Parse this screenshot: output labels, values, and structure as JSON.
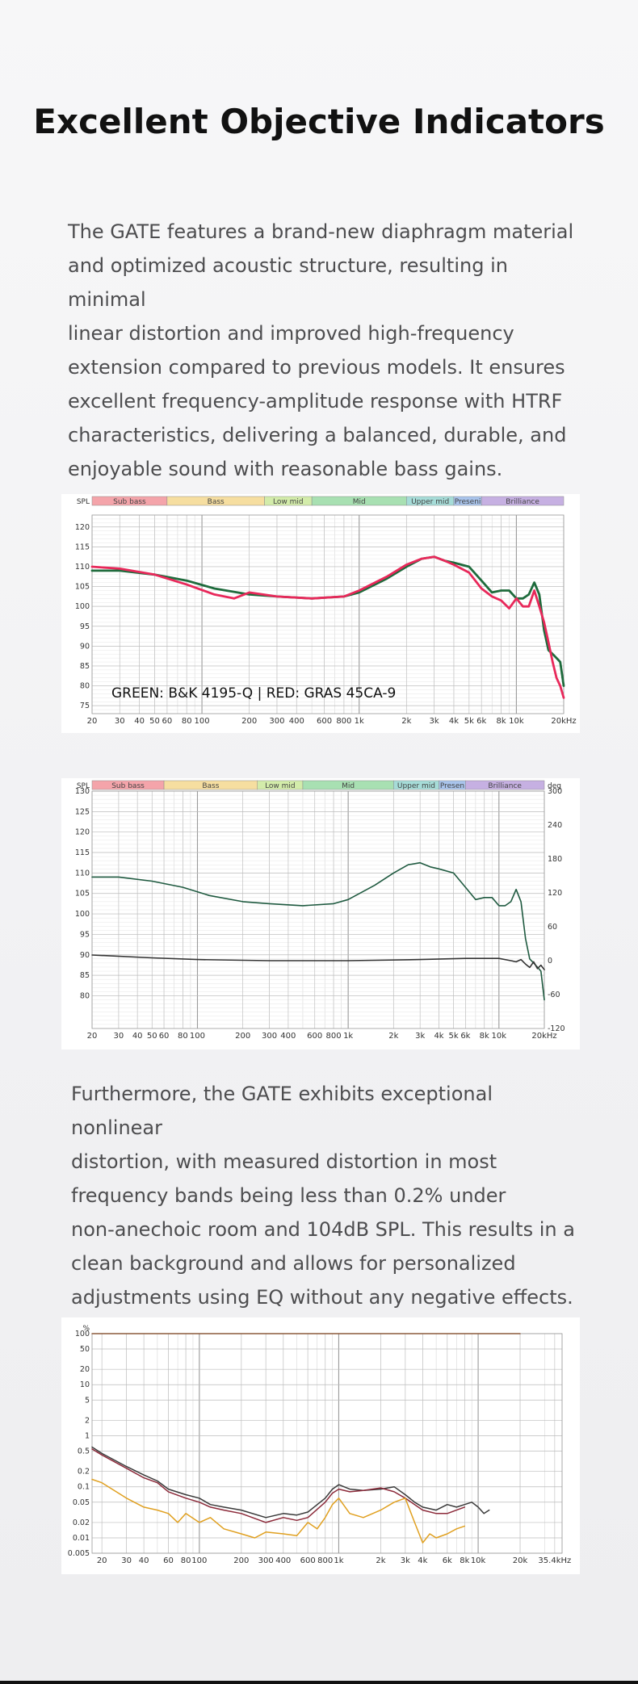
{
  "header": {
    "title": "Excellent Objective Indicators"
  },
  "intro": {
    "lines": [
      "The GATE features a brand-new diaphragm material",
      "and optimized acoustic structure, resulting in minimal",
      "linear distortion and improved high-frequency",
      "extension compared to previous models. It ensures",
      "excellent frequency-amplitude response with HTRF",
      "characteristics, delivering a balanced, durable, and",
      "enjoyable sound with reasonable bass gains."
    ]
  },
  "distortion_text": {
    "lines": [
      "Furthermore, the GATE exhibits exceptional nonlinear",
      "distortion, with measured distortion in most",
      "frequency bands being less than 0.2% under",
      "non-anechoic room and 104dB SPL. This results in a",
      "clean background and allows for personalized",
      "adjustments using EQ without any negative effects."
    ]
  },
  "chart_data": [
    {
      "type": "line",
      "id": "fr",
      "ylabel": "SPL",
      "bands": [
        {
          "name": "Sub bass",
          "from": 20,
          "to": 60,
          "color": "#f4a4aa"
        },
        {
          "name": "Bass",
          "from": 60,
          "to": 250,
          "color": "#f6dea0"
        },
        {
          "name": "Low mid",
          "from": 250,
          "to": 500,
          "color": "#d3ecaa"
        },
        {
          "name": "Mid",
          "from": 500,
          "to": 2000,
          "color": "#a8e0b2"
        },
        {
          "name": "Upper mid",
          "from": 2000,
          "to": 4000,
          "color": "#a6dcd8"
        },
        {
          "name": "Presence",
          "label": "Preseni",
          "from": 4000,
          "to": 6000,
          "color": "#a9c4ec"
        },
        {
          "name": "Brilliance",
          "from": 6000,
          "to": 20000,
          "color": "#c6b0e2"
        }
      ],
      "annotation": "GREEN: B&K 4195-Q | RED: GRAS 45CA-9",
      "xscale": "log",
      "xlim": [
        20,
        20000
      ],
      "ylim": [
        73,
        123
      ],
      "xticks": [
        20,
        30,
        40,
        50,
        60,
        80,
        100,
        200,
        300,
        400,
        600,
        800,
        1000,
        2000,
        3000,
        4000,
        5000,
        6000,
        8000,
        10000,
        20000
      ],
      "xtick_labels": [
        "20",
        "30",
        "40",
        "50",
        "60",
        "80",
        "100",
        "200",
        "300",
        "400",
        "600",
        "800",
        "1k",
        "2k",
        "3k",
        "4k",
        "5k",
        "6k",
        "8k",
        "10k",
        "20kHz"
      ],
      "yticks": [
        75,
        80,
        85,
        90,
        95,
        100,
        105,
        110,
        115,
        120
      ],
      "series": [
        {
          "color": "#1e6b3c",
          "x": [
            20,
            30,
            50,
            80,
            120,
            200,
            300,
            500,
            800,
            1000,
            1500,
            2000,
            2500,
            3000,
            3500,
            4000,
            5000,
            6000,
            7000,
            8000,
            9000,
            10000,
            11000,
            12000,
            13000,
            14000,
            15000,
            16000,
            17000,
            18000,
            19000,
            20000
          ],
          "y": [
            109,
            109,
            108,
            106.5,
            104.5,
            103,
            102.5,
            102,
            102.5,
            103.5,
            107,
            110,
            112,
            112.5,
            111.5,
            111,
            110,
            106.5,
            103.5,
            104,
            104,
            102,
            102,
            103,
            106,
            103,
            94,
            89,
            88,
            87,
            86,
            80
          ]
        },
        {
          "color": "#e8285a",
          "x": [
            20,
            30,
            50,
            80,
            120,
            160,
            200,
            300,
            500,
            800,
            1000,
            1500,
            2000,
            2500,
            3000,
            3500,
            4000,
            5000,
            6000,
            7000,
            8000,
            9000,
            10000,
            11000,
            12000,
            13000,
            14000,
            15000,
            16000,
            17000,
            18000,
            19000,
            20000
          ],
          "y": [
            110,
            109.5,
            108,
            105.5,
            103,
            102,
            103.5,
            102.5,
            102,
            102.5,
            104,
            107.5,
            110.5,
            112,
            112.5,
            111.5,
            110.5,
            108.5,
            104.5,
            102.5,
            101.5,
            99.5,
            102,
            100,
            100,
            104,
            100,
            96,
            91,
            86,
            82,
            80,
            77
          ]
        }
      ]
    },
    {
      "type": "line",
      "id": "fr_phase",
      "ylabel": "SPL",
      "y2label": "deg",
      "bands": [
        {
          "name": "Sub bass",
          "from": 20,
          "to": 60,
          "color": "#f4a4aa"
        },
        {
          "name": "Bass",
          "from": 60,
          "to": 250,
          "color": "#f6dea0"
        },
        {
          "name": "Low mid",
          "from": 250,
          "to": 500,
          "color": "#d3ecaa"
        },
        {
          "name": "Mid",
          "from": 500,
          "to": 2000,
          "color": "#a8e0b2"
        },
        {
          "name": "Upper mid",
          "from": 2000,
          "to": 4000,
          "color": "#a6dcd8"
        },
        {
          "name": "Presence",
          "label": "Presen",
          "from": 4000,
          "to": 6000,
          "color": "#a9c4ec"
        },
        {
          "name": "Brilliance",
          "from": 6000,
          "to": 20000,
          "color": "#c6b0e2"
        }
      ],
      "xscale": "log",
      "xlim": [
        20,
        20000
      ],
      "ylim": [
        72,
        130
      ],
      "y2lim": [
        -120,
        300
      ],
      "xticks": [
        20,
        30,
        40,
        50,
        60,
        80,
        100,
        200,
        300,
        400,
        600,
        800,
        1000,
        2000,
        3000,
        4000,
        5000,
        6000,
        8000,
        10000,
        20000
      ],
      "xtick_labels": [
        "20",
        "30",
        "40",
        "50",
        "60",
        "80",
        "100",
        "200",
        "300",
        "400",
        "600",
        "800",
        "1k",
        "2k",
        "3k",
        "4k",
        "5k",
        "6k",
        "8k",
        "10k",
        "20kHz"
      ],
      "yticks": [
        80,
        85,
        90,
        95,
        100,
        105,
        110,
        115,
        120,
        125,
        130
      ],
      "y2ticks": [
        -120,
        -60,
        0,
        60,
        120,
        180,
        240,
        300
      ],
      "series": [
        {
          "axis": "left",
          "color": "#1f5a40",
          "x": [
            20,
            30,
            50,
            80,
            120,
            200,
            300,
            500,
            800,
            1000,
            1500,
            2000,
            2500,
            3000,
            3500,
            4000,
            5000,
            6000,
            7000,
            8000,
            9000,
            10000,
            11000,
            12000,
            13000,
            14000,
            15000,
            16000,
            17000,
            18000,
            19000,
            20000
          ],
          "y": [
            109,
            109,
            108,
            106.5,
            104.5,
            103,
            102.5,
            102,
            102.5,
            103.5,
            107,
            110,
            112,
            112.5,
            111.5,
            111,
            110,
            106.5,
            103.5,
            104,
            104,
            102,
            102,
            103,
            106,
            103,
            94,
            89,
            88,
            87,
            86,
            79
          ]
        },
        {
          "axis": "right",
          "color": "#333333",
          "x": [
            20,
            50,
            100,
            300,
            1000,
            3000,
            6000,
            10000,
            12000,
            13000,
            14000,
            15000,
            16000,
            17000,
            18000,
            19000,
            20000
          ],
          "y": [
            10,
            5,
            2,
            0,
            0,
            2,
            4,
            4,
            0,
            -2,
            2,
            -6,
            -12,
            -2,
            -14,
            -8,
            -16
          ]
        }
      ]
    },
    {
      "type": "line",
      "id": "thd",
      "ylabel": "%",
      "xscale": "log",
      "yscale": "log",
      "xlim": [
        17,
        40000
      ],
      "ylim": [
        0.005,
        100
      ],
      "xticks": [
        20,
        30,
        40,
        60,
        80,
        100,
        200,
        300,
        400,
        600,
        800,
        1000,
        2000,
        3000,
        4000,
        6000,
        8000,
        10000,
        20000,
        35400
      ],
      "xtick_labels": [
        "20",
        "30",
        "40",
        "60",
        "80",
        "100",
        "200",
        "300",
        "400",
        "600",
        "800",
        "1k",
        "2k",
        "3k",
        "4k",
        "6k",
        "8k",
        "10k",
        "20k",
        "35.4kHz"
      ],
      "yticks": [
        0.005,
        0.01,
        0.02,
        0.05,
        0.1,
        0.2,
        0.5,
        1,
        2,
        5,
        10,
        20,
        50,
        100
      ],
      "ytick_labels": [
        "0.005",
        "0.01",
        "0.02",
        "0.05",
        "0.1",
        "0.2",
        "0.5",
        "1",
        "2",
        "5",
        "10",
        "20",
        "50",
        "100"
      ],
      "series": [
        {
          "color": "#8b5a3c",
          "x": [
            17,
            20000
          ],
          "y": [
            100,
            100
          ]
        },
        {
          "color": "#3a3a3a",
          "x": [
            17,
            20,
            30,
            40,
            50,
            60,
            80,
            100,
            120,
            150,
            200,
            300,
            400,
            500,
            600,
            800,
            900,
            1000,
            1200,
            1500,
            2000,
            2500,
            3000,
            3500,
            4000,
            5000,
            6000,
            7000,
            8000,
            9000,
            10000,
            11000,
            12000
          ],
          "y": [
            0.6,
            0.45,
            0.25,
            0.17,
            0.13,
            0.09,
            0.07,
            0.06,
            0.045,
            0.04,
            0.035,
            0.025,
            0.03,
            0.028,
            0.032,
            0.06,
            0.09,
            0.11,
            0.09,
            0.085,
            0.09,
            0.1,
            0.07,
            0.05,
            0.04,
            0.035,
            0.045,
            0.04,
            0.045,
            0.05,
            0.04,
            0.03,
            0.035
          ]
        },
        {
          "color": "#8c2a3a",
          "x": [
            17,
            20,
            30,
            40,
            50,
            60,
            80,
            100,
            120,
            150,
            200,
            300,
            400,
            500,
            600,
            800,
            900,
            1000,
            1200,
            1500,
            2000,
            2500,
            3000,
            3500,
            4000,
            5000,
            6000,
            7000,
            8000
          ],
          "y": [
            0.55,
            0.42,
            0.23,
            0.15,
            0.12,
            0.08,
            0.06,
            0.05,
            0.04,
            0.035,
            0.03,
            0.02,
            0.025,
            0.022,
            0.025,
            0.05,
            0.075,
            0.09,
            0.08,
            0.085,
            0.095,
            0.08,
            0.06,
            0.045,
            0.035,
            0.03,
            0.03,
            0.035,
            0.04
          ]
        },
        {
          "color": "#e0a020",
          "x": [
            17,
            20,
            30,
            40,
            50,
            60,
            70,
            80,
            100,
            120,
            150,
            200,
            250,
            300,
            400,
            500,
            600,
            700,
            800,
            900,
            1000,
            1200,
            1500,
            2000,
            2500,
            3000,
            3500,
            4000,
            4500,
            5000,
            6000,
            7000,
            8000
          ],
          "y": [
            0.14,
            0.12,
            0.06,
            0.04,
            0.035,
            0.03,
            0.02,
            0.03,
            0.02,
            0.025,
            0.015,
            0.012,
            0.01,
            0.013,
            0.012,
            0.011,
            0.02,
            0.015,
            0.025,
            0.045,
            0.06,
            0.03,
            0.025,
            0.035,
            0.05,
            0.06,
            0.02,
            0.008,
            0.012,
            0.01,
            0.012,
            0.015,
            0.017
          ]
        }
      ]
    }
  ]
}
